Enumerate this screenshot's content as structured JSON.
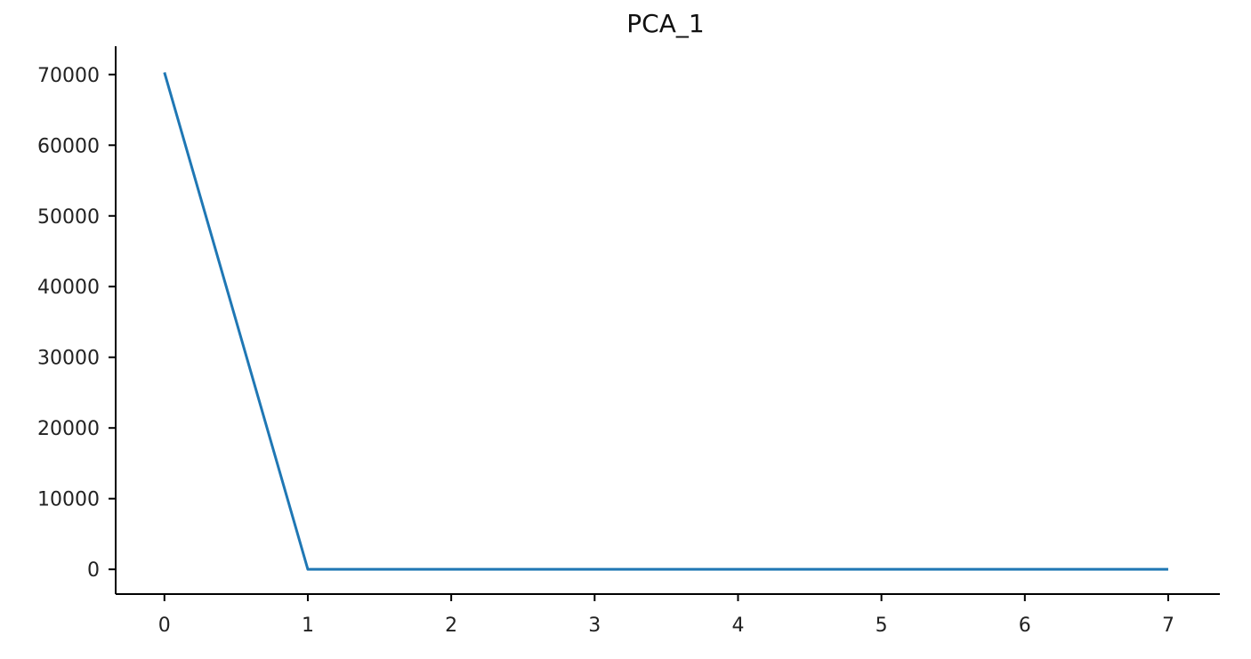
{
  "colors": {
    "series": "#1f77b4",
    "axis": "#000000",
    "text": "#222222"
  },
  "chart_data": {
    "type": "line",
    "title": "PCA_1",
    "xlabel": "",
    "ylabel": "",
    "x": [
      0,
      1,
      2,
      3,
      4,
      5,
      6,
      7
    ],
    "series": [
      {
        "values": [
          70300,
          0,
          0,
          0,
          0,
          0,
          0,
          0
        ]
      }
    ],
    "xlim": [
      -0.34,
      7.36
    ],
    "ylim": [
      -3500,
      74000
    ],
    "xticks": [
      0,
      1,
      2,
      3,
      4,
      5,
      6,
      7
    ],
    "xtick_labels": [
      "0",
      "1",
      "2",
      "3",
      "4",
      "5",
      "6",
      "7"
    ],
    "yticks": [
      0,
      10000,
      20000,
      30000,
      40000,
      50000,
      60000,
      70000
    ],
    "ytick_labels": [
      "0",
      "10000",
      "20000",
      "30000",
      "40000",
      "50000",
      "60000",
      "70000"
    ],
    "grid": false,
    "legend": "none",
    "spines": "left-bottom"
  }
}
